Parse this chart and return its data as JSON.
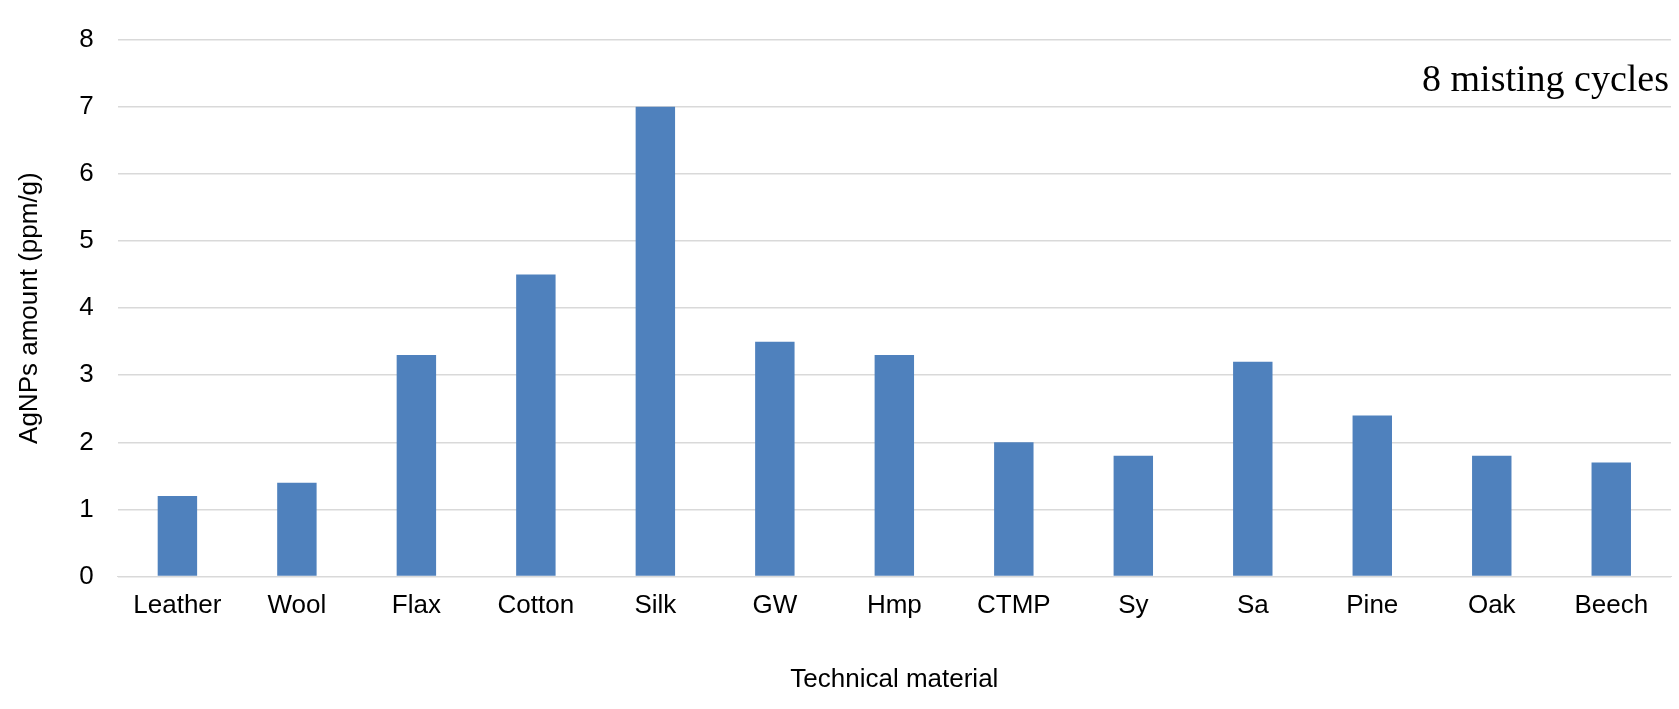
{
  "chart_data": {
    "type": "bar",
    "categories": [
      "Leather",
      "Wool",
      "Flax",
      "Cotton",
      "Silk",
      "GW",
      "Hmp",
      "CTMP",
      "Sy",
      "Sa",
      "Pine",
      "Oak",
      "Beech"
    ],
    "values": [
      1.2,
      1.4,
      3.3,
      4.5,
      7.0,
      3.5,
      3.3,
      2.0,
      1.8,
      3.2,
      2.4,
      1.8,
      1.7
    ],
    "color": "#4f81bd",
    "xlabel": "Technical material",
    "ylabel": "AgNPs amount (ppm/g)",
    "ylim": [
      0,
      8
    ],
    "yticks": [
      0,
      1,
      2,
      3,
      4,
      5,
      6,
      7,
      8
    ],
    "grid": "y",
    "legend": false,
    "annotations": [
      "8 misting cycles"
    ]
  }
}
